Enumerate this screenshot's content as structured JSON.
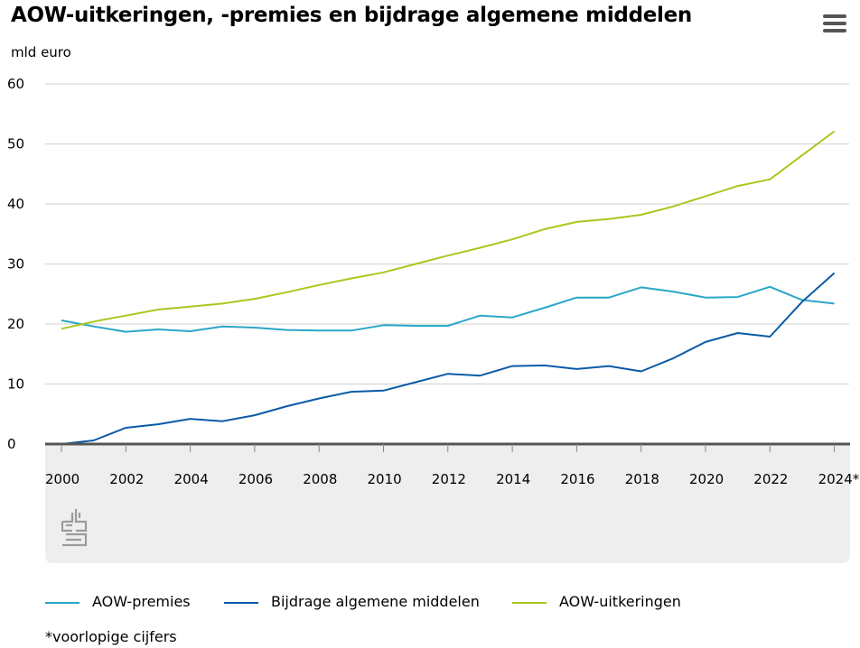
{
  "header": {
    "title": "AOW-uitkeringen, -premies en bijdrage algemene middelen",
    "menu_icon": "hamburger-menu-icon"
  },
  "brand_icon": "cbs-logo-icon",
  "footnote": "*voorlopige cijfers",
  "colors": {
    "premies": "#2aa6c7",
    "bijdrage": "#0a5aa8",
    "uitkeringen": "#a8c81e",
    "grid": "#d0d0d0",
    "axis": "#555555",
    "footer_band": "#eeeeee",
    "logo": "#9b9b9b"
  },
  "chart_data": {
    "type": "line",
    "title": "AOW-uitkeringen, -premies en bijdrage algemene middelen",
    "ylabel": "mld euro",
    "xlabel": "",
    "ylim": [
      0,
      60
    ],
    "yticks": [
      0,
      10,
      20,
      30,
      40,
      50,
      60
    ],
    "grid": true,
    "legend_position": "bottom",
    "x": [
      2000,
      2001,
      2002,
      2003,
      2004,
      2005,
      2006,
      2007,
      2008,
      2009,
      2010,
      2011,
      2012,
      2013,
      2014,
      2015,
      2016,
      2017,
      2018,
      2019,
      2020,
      2021,
      2022,
      2023,
      2024
    ],
    "xticks": [
      "2000",
      "2002",
      "2004",
      "2006",
      "2008",
      "2010",
      "2012",
      "2014",
      "2016",
      "2018",
      "2020",
      "2022",
      "2024*"
    ],
    "series": [
      {
        "name": "AOW-premies",
        "key": "premies",
        "values": [
          20.6,
          19.6,
          18.7,
          19.1,
          18.8,
          19.6,
          19.4,
          19.0,
          18.9,
          18.9,
          19.8,
          19.7,
          19.7,
          21.4,
          21.1,
          22.7,
          24.4,
          24.4,
          26.1,
          25.4,
          24.4,
          24.5,
          26.2,
          24.0,
          23.4
        ]
      },
      {
        "name": "Bijdrage algemene middelen",
        "key": "bijdrage",
        "values": [
          0.0,
          0.6,
          2.7,
          3.3,
          4.2,
          3.8,
          4.8,
          6.3,
          7.6,
          8.7,
          8.9,
          10.3,
          11.7,
          11.4,
          13.0,
          13.1,
          12.5,
          13.0,
          12.1,
          14.3,
          17.0,
          18.5,
          17.9,
          23.7,
          28.5
        ]
      },
      {
        "name": "AOW-uitkeringen",
        "key": "uitkeringen",
        "values": [
          19.2,
          20.4,
          21.4,
          22.4,
          22.9,
          23.4,
          24.2,
          25.3,
          26.5,
          27.6,
          28.6,
          30.0,
          31.4,
          32.7,
          34.1,
          35.8,
          37.0,
          37.5,
          38.2,
          39.6,
          41.3,
          43.0,
          44.1,
          48.1,
          52.1
        ]
      }
    ]
  }
}
